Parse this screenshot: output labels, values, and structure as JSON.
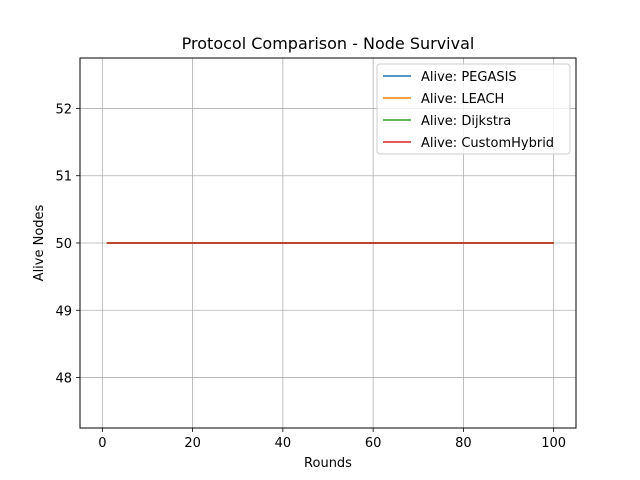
{
  "chart_data": {
    "type": "line",
    "title": "Protocol Comparison - Node Survival",
    "xlabel": "Rounds",
    "ylabel": "Alive Nodes",
    "xlim": [
      -4.95,
      104.95
    ],
    "ylim": [
      47.25,
      52.75
    ],
    "xticks": [
      0,
      20,
      40,
      60,
      80,
      100
    ],
    "yticks": [
      48,
      49,
      50,
      51,
      52
    ],
    "grid": true,
    "legend_position": "upper right",
    "series": [
      {
        "name": "Alive: PEGASIS",
        "color": "#1f77b4",
        "x": [
          1,
          100
        ],
        "y": [
          50,
          50
        ]
      },
      {
        "name": "Alive: LEACH",
        "color": "#ff7f0e",
        "x": [
          1,
          100
        ],
        "y": [
          50,
          50
        ]
      },
      {
        "name": "Alive: Dijkstra",
        "color": "#2ca02c",
        "x": [
          1,
          100
        ],
        "y": [
          50,
          50
        ]
      },
      {
        "name": "Alive: CustomHybrid",
        "color": "#d62728",
        "x": [
          1,
          100
        ],
        "y": [
          50,
          50
        ]
      }
    ]
  }
}
